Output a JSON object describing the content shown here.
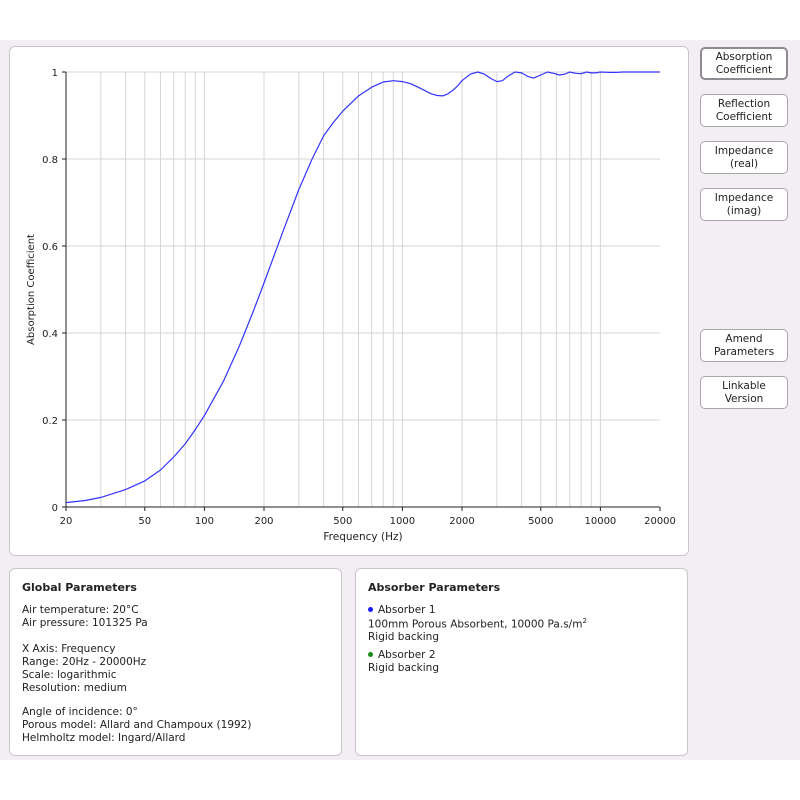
{
  "buttons": {
    "absorption": [
      "Absorption",
      "Coefficient"
    ],
    "reflection": [
      "Reflection",
      "Coefficient"
    ],
    "impedance_real": [
      "Impedance",
      "(real)"
    ],
    "impedance_imag": [
      "Impedance",
      "(imag)"
    ],
    "amend": [
      "Amend",
      "Parameters"
    ],
    "linkable": [
      "Linkable",
      "Version"
    ]
  },
  "global": {
    "title": "Global Parameters",
    "air_temperature": "Air temperature: 20°C",
    "air_pressure": "Air pressure: 101325 Pa",
    "x_axis": "X Axis: Frequency",
    "range": "Range: 20Hz - 20000Hz",
    "scale": "Scale: logarithmic",
    "resolution": "Resolution: medium",
    "incidence": "Angle of incidence: 0°",
    "porous_model": "Porous model: Allard and Champoux (1992)",
    "helmholtz_model": "Helmholtz model: Ingard/Allard"
  },
  "absorber": {
    "title": "Absorber Parameters",
    "a1_name": "Absorber 1",
    "a1_color": "#1a1aff",
    "a1_desc_main": "100mm Porous Absorbent, 10000 Pa.s/m",
    "a1_desc_sup": "2",
    "a1_backing": "Rigid backing",
    "a2_name": "Absorber 2",
    "a2_color": "#1a8a1a",
    "a2_backing": "Rigid backing"
  },
  "chart_data": {
    "type": "line",
    "xlabel": "Frequency (Hz)",
    "ylabel": "Absorption Coefficient",
    "x_scale": "log",
    "xlim": [
      20,
      20000
    ],
    "ylim": [
      0,
      1
    ],
    "x_ticks": [
      20,
      50,
      100,
      200,
      500,
      1000,
      2000,
      5000,
      10000,
      20000
    ],
    "x_tick_labels": [
      "20",
      "50",
      "100",
      "200",
      "500",
      "1000",
      "2000",
      "5000",
      "10000",
      "20000"
    ],
    "y_ticks": [
      0,
      0.2,
      0.4,
      0.6,
      0.8,
      1
    ],
    "y_tick_labels": [
      "0",
      "0.2",
      "0.4",
      "0.6",
      "0.8",
      "1"
    ],
    "grid": true,
    "series": [
      {
        "color": "#3333ff",
        "x": [
          20,
          25,
          30,
          40,
          50,
          60,
          70,
          80,
          90,
          100,
          125,
          150,
          175,
          200,
          250,
          300,
          350,
          400,
          450,
          500,
          600,
          700,
          800,
          900,
          1000,
          1100,
          1200,
          1300,
          1400,
          1500,
          1600,
          1700,
          1800,
          1900,
          2000,
          2200,
          2400,
          2600,
          2800,
          3000,
          3200,
          3400,
          3700,
          4000,
          4300,
          4600,
          5000,
          5400,
          5800,
          6200,
          6600,
          7000,
          7500,
          8000,
          8500,
          9000,
          9500,
          10000,
          11000,
          12000,
          13000,
          14000,
          16000,
          18000,
          20000
        ],
        "y": [
          0.01,
          0.015,
          0.022,
          0.04,
          0.06,
          0.085,
          0.115,
          0.145,
          0.178,
          0.21,
          0.29,
          0.37,
          0.445,
          0.515,
          0.635,
          0.73,
          0.8,
          0.853,
          0.885,
          0.91,
          0.945,
          0.965,
          0.977,
          0.98,
          0.978,
          0.973,
          0.965,
          0.957,
          0.95,
          0.946,
          0.945,
          0.95,
          0.958,
          0.968,
          0.98,
          0.995,
          1.0,
          0.995,
          0.985,
          0.978,
          0.98,
          0.99,
          1.0,
          0.998,
          0.99,
          0.986,
          0.993,
          1.0,
          0.997,
          0.993,
          0.995,
          1.0,
          0.997,
          0.996,
          1.0,
          0.998,
          0.998,
          1.0,
          0.999,
          0.999,
          1.0,
          1.0,
          1.0,
          1.0,
          1.0
        ]
      }
    ]
  }
}
